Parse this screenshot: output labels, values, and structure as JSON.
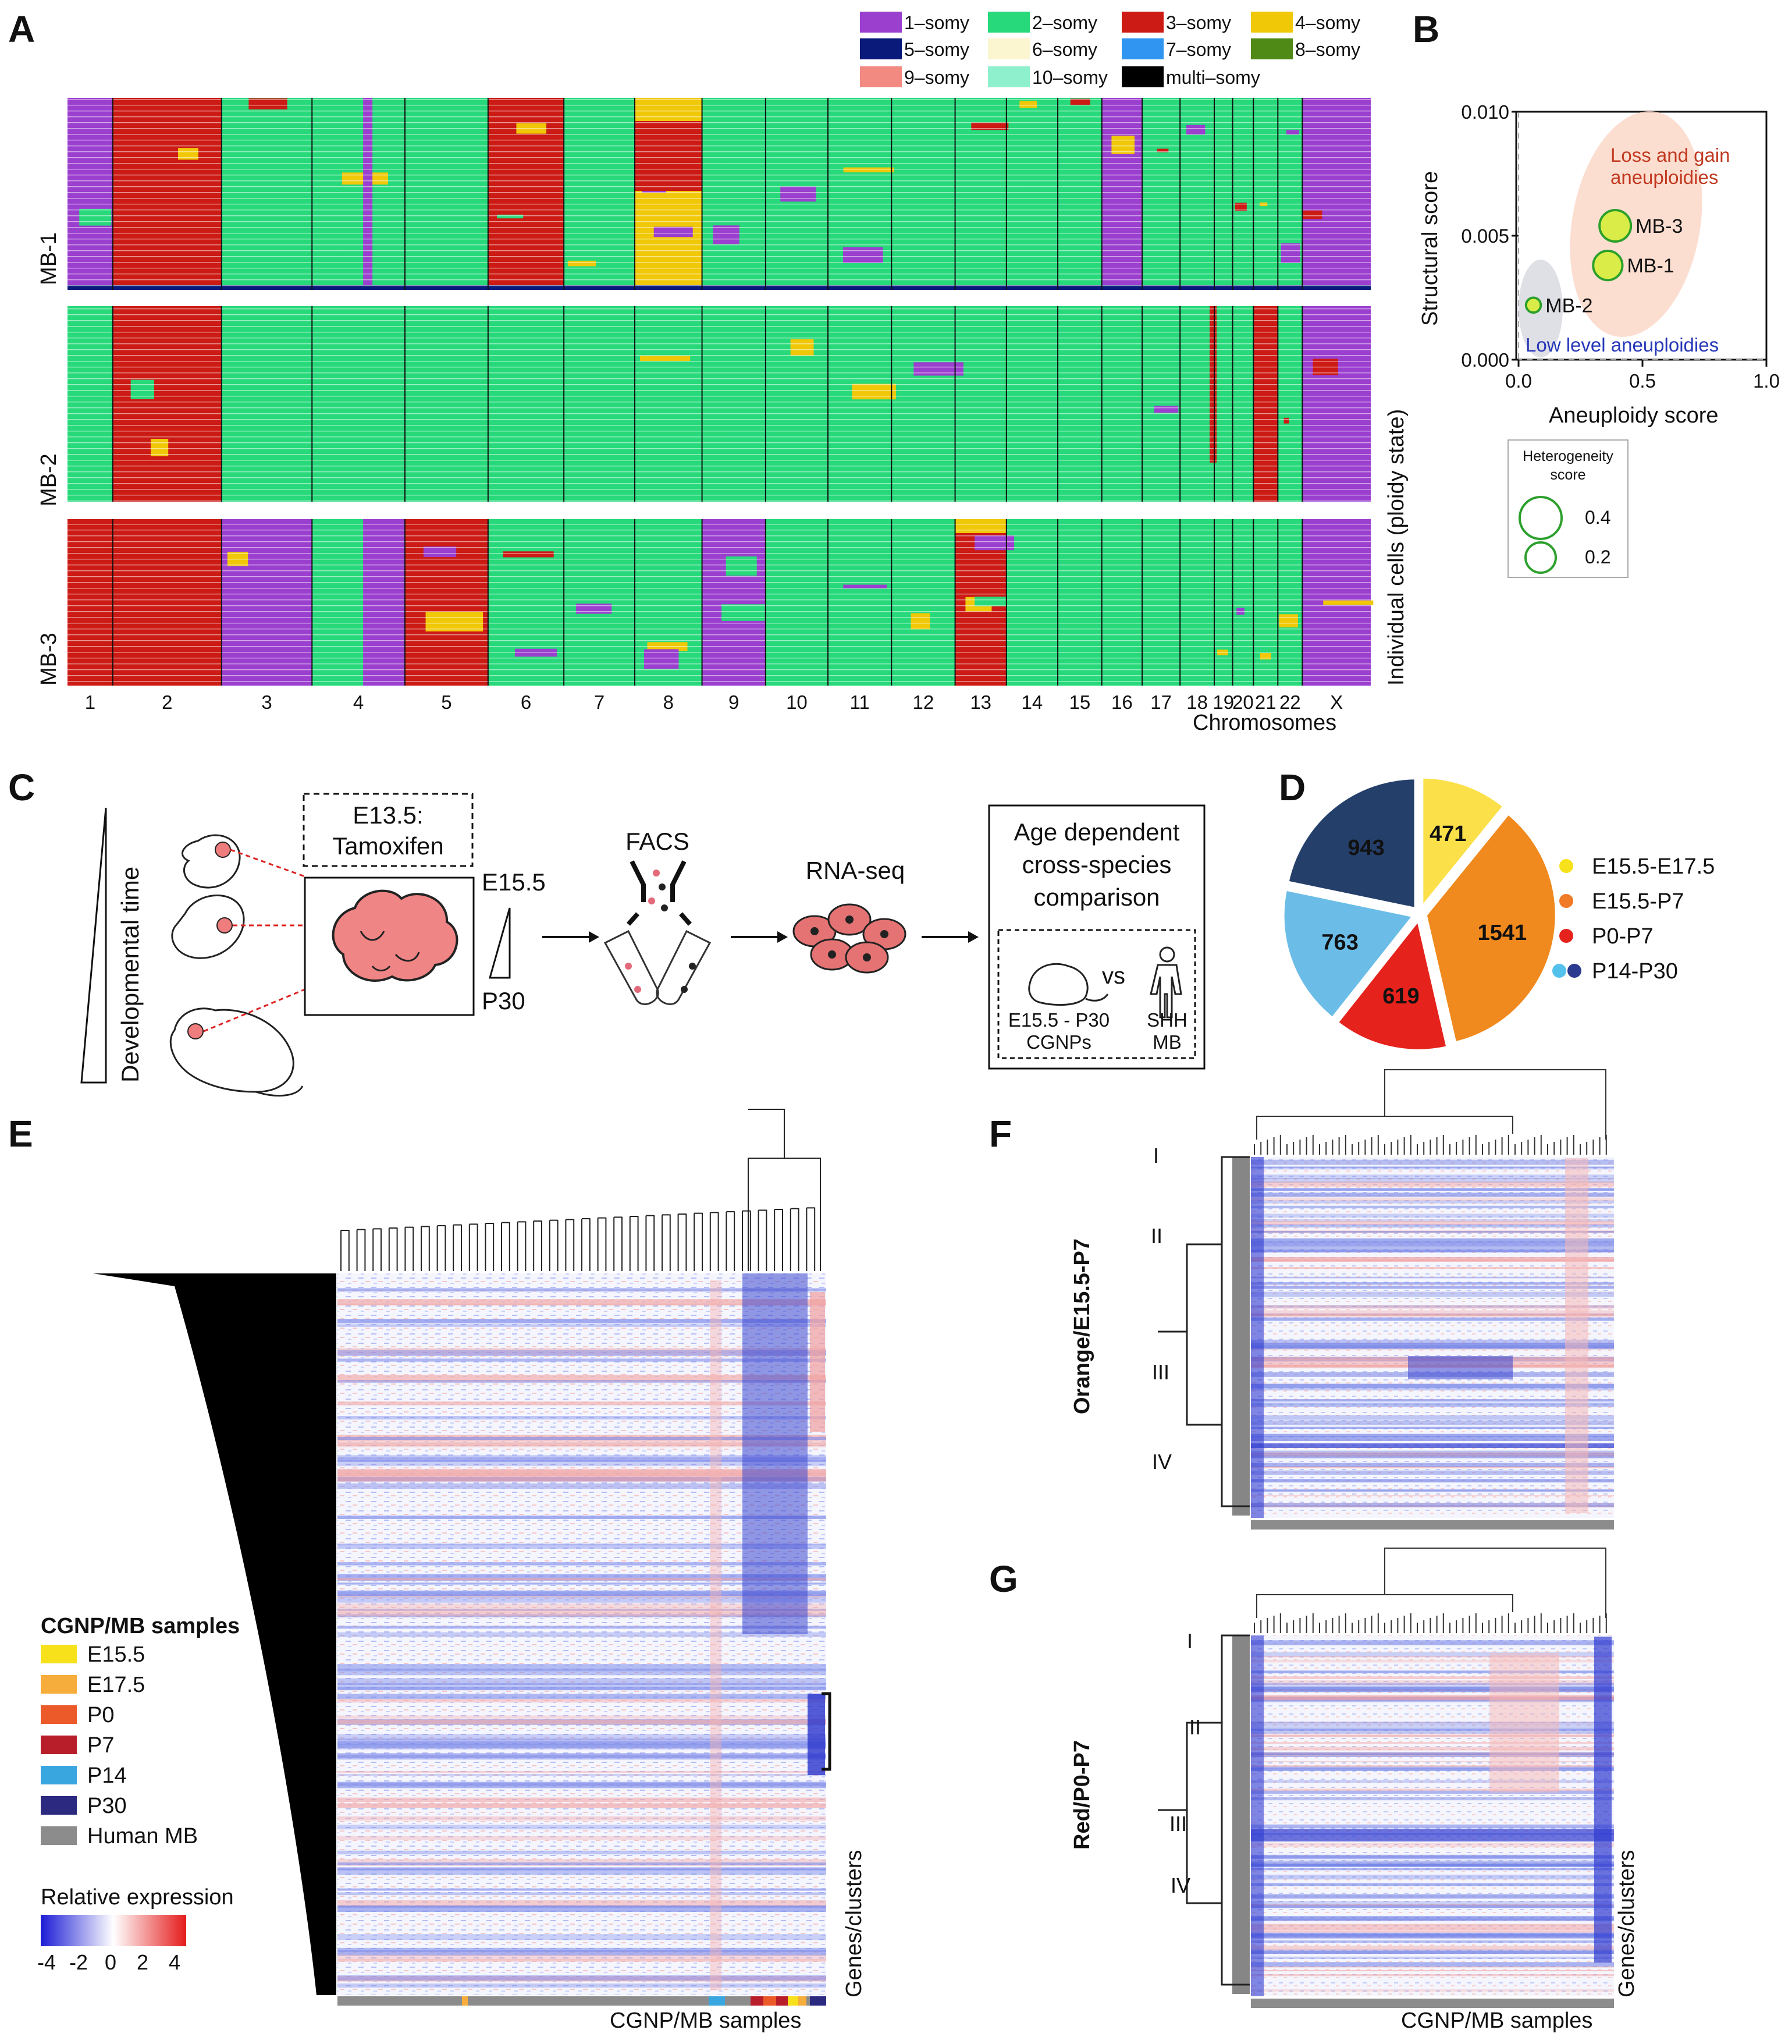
{
  "panels": {
    "A": "A",
    "B": "B",
    "C": "C",
    "D": "D",
    "E": "E",
    "F": "F",
    "G": "G"
  },
  "legend_a": {
    "items": [
      {
        "label": "1–somy",
        "color": "#9b3fcf"
      },
      {
        "label": "2–somy",
        "color": "#27d97a"
      },
      {
        "label": "3–somy",
        "color": "#cc1a14"
      },
      {
        "label": "4–somy",
        "color": "#f0c808"
      },
      {
        "label": "5–somy",
        "color": "#0a1a7a"
      },
      {
        "label": "6–somy",
        "color": "#fbf6cf"
      },
      {
        "label": "7–somy",
        "color": "#2f95f0"
      },
      {
        "label": "8–somy",
        "color": "#4f8a16"
      },
      {
        "label": "9–somy",
        "color": "#f28a82"
      },
      {
        "label": "10–somy",
        "color": "#8ff0cd"
      },
      {
        "label": "multi–somy",
        "color": "#000000"
      }
    ]
  },
  "panel_a": {
    "groups": [
      "MB-1",
      "MB-2",
      "MB-3"
    ],
    "chromosome_labels": [
      "1",
      "2",
      "3",
      "4",
      "5",
      "6",
      "7",
      "8",
      "9",
      "10",
      "11",
      "12",
      "13",
      "14",
      "15",
      "16",
      "17",
      "18",
      "19",
      "20",
      "21",
      "22",
      "X"
    ],
    "xlabel": "Chromosomes",
    "ylabel": "Individual cells (ploidy state)"
  },
  "chart_data": [
    {
      "type": "scatter",
      "title": "",
      "xlabel": "Aneuploidy score",
      "ylabel": "Structural score",
      "xlim": [
        0.0,
        1.0
      ],
      "ylim": [
        0.0,
        0.01
      ],
      "xticks": [
        "0.0",
        "0.5",
        "1.0"
      ],
      "yticks": [
        "0.000",
        "0.005",
        "0.010"
      ],
      "points": [
        {
          "name": "MB-3",
          "x": 0.39,
          "y": 0.0054,
          "heterogeneity": 0.2
        },
        {
          "name": "MB-1",
          "x": 0.36,
          "y": 0.0038,
          "heterogeneity": 0.18
        },
        {
          "name": "MB-2",
          "x": 0.06,
          "y": 0.0022,
          "heterogeneity": 0.05
        }
      ],
      "annotations": [
        "Loss and gain",
        "aneuploidies",
        "Low level aneuploidies"
      ],
      "size_legend": {
        "title_1": "Heterogeneity",
        "title_2": "score",
        "values": [
          "0.4",
          "0.2"
        ]
      }
    },
    {
      "type": "pie",
      "slices": [
        {
          "value": 471,
          "label": "471",
          "color": "#fbe04a"
        },
        {
          "value": 1541,
          "label": "1541",
          "color": "#f08a1e"
        },
        {
          "value": 619,
          "label": "619",
          "color": "#e5231c"
        },
        {
          "value": 763,
          "label": "763",
          "color": "#6bbde8"
        },
        {
          "value": 943,
          "label": "943",
          "color": "#253f6b"
        }
      ],
      "legend": [
        {
          "label": "E15.5-E17.5",
          "colors": [
            "#f7e11b"
          ]
        },
        {
          "label": "E15.5-P7",
          "colors": [
            "#f07a26"
          ]
        },
        {
          "label": "P0-P7",
          "colors": [
            "#e5231c"
          ]
        },
        {
          "label": "P14-P30",
          "colors": [
            "#54c1ec",
            "#2c3a8f"
          ]
        }
      ]
    }
  ],
  "panel_c": {
    "dev_time": "Developmental time",
    "box1_line1": "E13.5:",
    "box1_line2": "Tamoxifen",
    "e155": "E15.5",
    "p30": "P30",
    "facs": "FACS",
    "rnaseq": "RNA-seq",
    "comp_line1": "Age dependent",
    "comp_line2": "cross-species",
    "comp_line3": "comparison",
    "vs": "vs",
    "mouse_line1": "E15.5 - P30",
    "mouse_line2": "CGNPs",
    "human_line1": "SHH",
    "human_line2": "MB"
  },
  "panel_e": {
    "legend_title": "CGNP/MB samples",
    "samples": [
      {
        "label": "E15.5",
        "color": "#f7e11b"
      },
      {
        "label": "E17.5",
        "color": "#f7ad3b"
      },
      {
        "label": "P0",
        "color": "#ec5a2a"
      },
      {
        "label": "P7",
        "color": "#b81e2a"
      },
      {
        "label": "P14",
        "color": "#3aa6e0"
      },
      {
        "label": "P30",
        "color": "#2c2a80"
      },
      {
        "label": "Human MB",
        "color": "#8c8c8c"
      }
    ],
    "rel_expr_title": "Relative expression",
    "scale_ticks": [
      "-4",
      "-2",
      "0",
      "2",
      "4"
    ],
    "xlabel": "CGNP/MB samples",
    "ylabel": "Genes/clusters"
  },
  "panel_f": {
    "ylabel": "Orange/E15.5-P7",
    "clusters": [
      "I",
      "II",
      "III",
      "IV"
    ]
  },
  "panel_g": {
    "ylabel": "Red/P0-P7",
    "clusters": [
      "I",
      "II",
      "III",
      "IV"
    ],
    "xlabel": "CGNP/MB samples",
    "genes": "Genes/clusters"
  }
}
